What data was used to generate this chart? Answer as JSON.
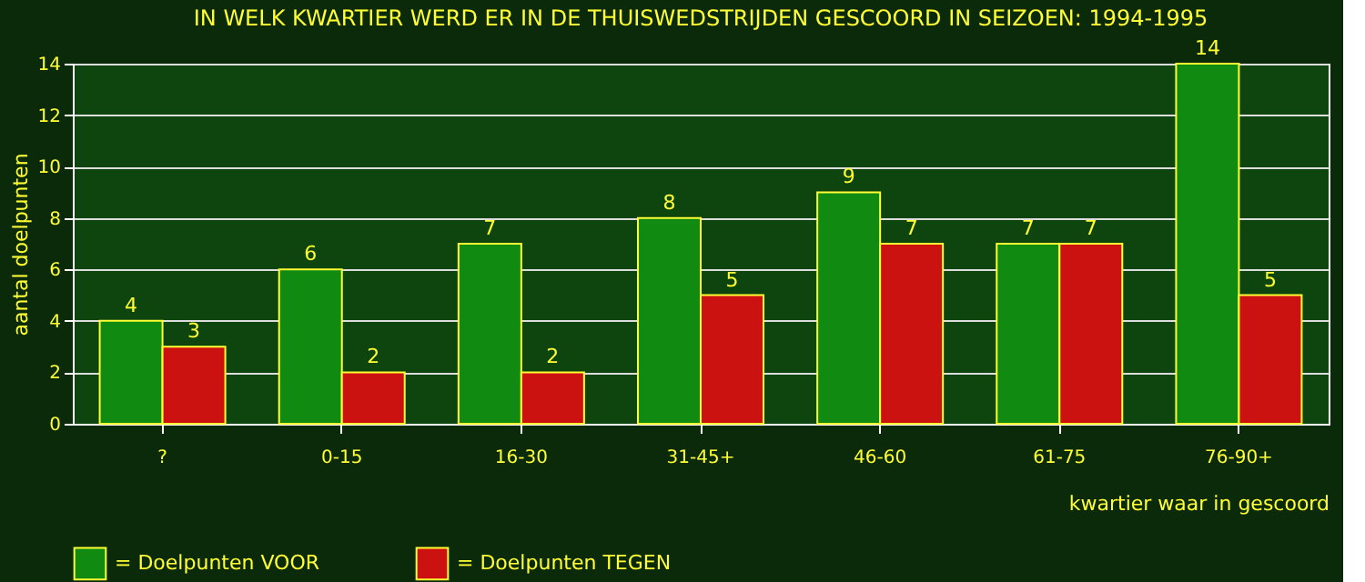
{
  "chart_data": {
    "type": "bar",
    "title": "IN WELK KWARTIER WERD ER IN DE THUISWEDSTRIJDEN GESCOORD IN SEIZOEN: 1994-1995",
    "xlabel": "kwartier waar in gescoord",
    "ylabel": "aantal doelpunten",
    "categories": [
      "?",
      "0-15",
      "16-30",
      "31-45+",
      "46-60",
      "61-75",
      "76-90+"
    ],
    "series": [
      {
        "name": "= Doelpunten VOOR",
        "color": "#118a11",
        "values": [
          4,
          6,
          7,
          8,
          9,
          7,
          14
        ]
      },
      {
        "name": "= Doelpunten TEGEN",
        "color": "#cc1111",
        "values": [
          3,
          2,
          2,
          5,
          7,
          7,
          5
        ]
      }
    ],
    "ylim": [
      0,
      14
    ],
    "yticks": [
      0,
      2,
      4,
      6,
      8,
      10,
      12,
      14
    ],
    "grid": "y",
    "data_labels": true,
    "legend": "bottom"
  }
}
